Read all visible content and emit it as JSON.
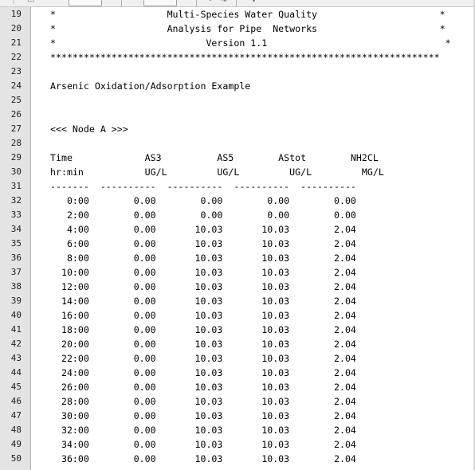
{
  "editor": {
    "lines": [
      {
        "num": "19",
        "text": "*                    Multi-Species Water Quality                      *"
      },
      {
        "num": "20",
        "text": "*                    Analysis for Pipe  Networks                      *"
      },
      {
        "num": "21",
        "text": "*                           Version 1.1                                *"
      },
      {
        "num": "22",
        "text": "**********************************************************************"
      },
      {
        "num": "23",
        "text": ""
      },
      {
        "num": "24",
        "text": "Arsenic Oxidation/Adsorption Example"
      },
      {
        "num": "25",
        "text": ""
      },
      {
        "num": "26",
        "text": ""
      },
      {
        "num": "27",
        "text": "<<< Node A >>>"
      },
      {
        "num": "28",
        "text": ""
      },
      {
        "num": "29",
        "text": "Time             AS3          AS5        AStot        NH2CL"
      },
      {
        "num": "30",
        "text": "hr:min           UG/L         UG/L         UG/L         MG/L"
      },
      {
        "num": "31",
        "text": "-------  ----------  ----------  ----------  ----------"
      },
      {
        "num": "32",
        "text": "   0:00        0.00        0.00        0.00        0.00"
      },
      {
        "num": "33",
        "text": "   2:00        0.00        0.00        0.00        0.00"
      },
      {
        "num": "34",
        "text": "   4:00        0.00       10.03       10.03        2.04"
      },
      {
        "num": "35",
        "text": "   6:00        0.00       10.03       10.03        2.04"
      },
      {
        "num": "36",
        "text": "   8:00        0.00       10.03       10.03        2.04"
      },
      {
        "num": "37",
        "text": "  10:00        0.00       10.03       10.03        2.04"
      },
      {
        "num": "38",
        "text": "  12:00        0.00       10.03       10.03        2.04"
      },
      {
        "num": "39",
        "text": "  14:00        0.00       10.03       10.03        2.04"
      },
      {
        "num": "40",
        "text": "  16:00        0.00       10.03       10.03        2.04"
      },
      {
        "num": "41",
        "text": "  18:00        0.00       10.03       10.03        2.04"
      },
      {
        "num": "42",
        "text": "  20:00        0.00       10.03       10.03        2.04"
      },
      {
        "num": "43",
        "text": "  22:00        0.00       10.03       10.03        2.04"
      },
      {
        "num": "44",
        "text": "  24:00        0.00       10.03       10.03        2.04"
      },
      {
        "num": "45",
        "text": "  26:00        0.00       10.03       10.03        2.04"
      },
      {
        "num": "46",
        "text": "  28:00        0.00       10.03       10.03        2.04"
      },
      {
        "num": "47",
        "text": "  30:00        0.00       10.03       10.03        2.04"
      },
      {
        "num": "48",
        "text": "  32:00        0.00       10.03       10.03        2.04"
      },
      {
        "num": "49",
        "text": "  34:00        0.00       10.03       10.03        2.04"
      },
      {
        "num": "50",
        "text": "  36:00        0.00       10.03       10.03        2.04"
      }
    ]
  },
  "toolbar": {
    "icons": [
      "redo-icon",
      "indent-icon",
      "dropdown-arrow-icon"
    ]
  }
}
